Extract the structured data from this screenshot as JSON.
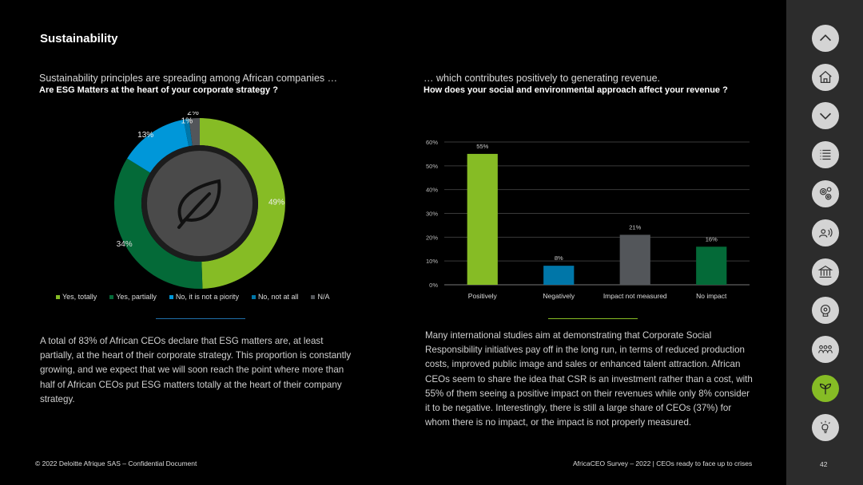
{
  "page": {
    "title": "Sustainability",
    "left": {
      "subtitle": "Sustainability principles are spreading among African companies …",
      "question": "Are ESG Matters at the heart of your corporate strategy ?",
      "paragraph": "A total of 83% of African CEOs declare that ESG matters are, at least partially, at the heart of their corporate strategy. This proportion is constantly growing, and we expect that we will soon reach the point where more than half of African CEOs put ESG matters totally at the heart of their company strategy."
    },
    "right": {
      "subtitle": "… which contributes positively to generating revenue.",
      "question": "How does your social and environmental  approach affect your revenue ?",
      "paragraph": "Many international studies aim at demonstrating that Corporate Social Responsibility initiatives pay off in the long run, in terms of reduced production costs, improved public image and sales or enhanced talent attraction. African CEOs seem to share the idea that CSR is an investment rather than a cost, with 55% of them seeing a positive impact on their revenues while only 8% consider it to be negative. Interestingly, there is still a large share of CEOs (37%) for whom there is no impact, or the impact is not properly measured."
    },
    "footer": {
      "left": "© 2022 Deloitte Afrique SAS – Confidential Document",
      "right": "AfricaCEO Survey – 2022 | CEOs ready to face up to crises",
      "page_number": "42"
    }
  },
  "sidebar": {
    "items": [
      {
        "icon": "chevron-up-icon",
        "active": false
      },
      {
        "icon": "home-icon",
        "active": false
      },
      {
        "icon": "chevron-down-icon",
        "active": false
      },
      {
        "icon": "list-icon",
        "active": false
      },
      {
        "icon": "gears-icon",
        "active": false
      },
      {
        "icon": "speaking-person-icon",
        "active": false
      },
      {
        "icon": "institution-icon",
        "active": false
      },
      {
        "icon": "settings-head-icon",
        "active": false
      },
      {
        "icon": "people-group-icon",
        "active": false
      },
      {
        "icon": "sprout-icon",
        "active": true
      },
      {
        "icon": "lightbulb-icon",
        "active": false
      }
    ]
  },
  "chart_data": [
    {
      "type": "pie",
      "variant": "donut",
      "categories": [
        "Yes, totally",
        "Yes, partially",
        "No, it is not a piority",
        "No, not at all",
        "N/A"
      ],
      "values": [
        49,
        34,
        13,
        1,
        2
      ],
      "labels": [
        "49%",
        "34%",
        "13%",
        "1%",
        "2%"
      ],
      "colors": [
        "#86bc25",
        "#046a38",
        "#0097d9",
        "#0076a8",
        "#53565a"
      ],
      "center_icon": "leaf-icon",
      "legend_position": "bottom"
    },
    {
      "type": "bar",
      "categories": [
        "Positively",
        "Negatively",
        "Impact not measured",
        "No impact"
      ],
      "values": [
        55,
        8,
        21,
        16
      ],
      "labels": [
        "55%",
        "8%",
        "21%",
        "16%"
      ],
      "colors": [
        "#86bc25",
        "#0076a8",
        "#53565a",
        "#046a38"
      ],
      "yticks": [
        "0%",
        "10%",
        "20%",
        "30%",
        "40%",
        "50%",
        "60%"
      ],
      "ylim": [
        0,
        60
      ],
      "grid": true
    }
  ]
}
